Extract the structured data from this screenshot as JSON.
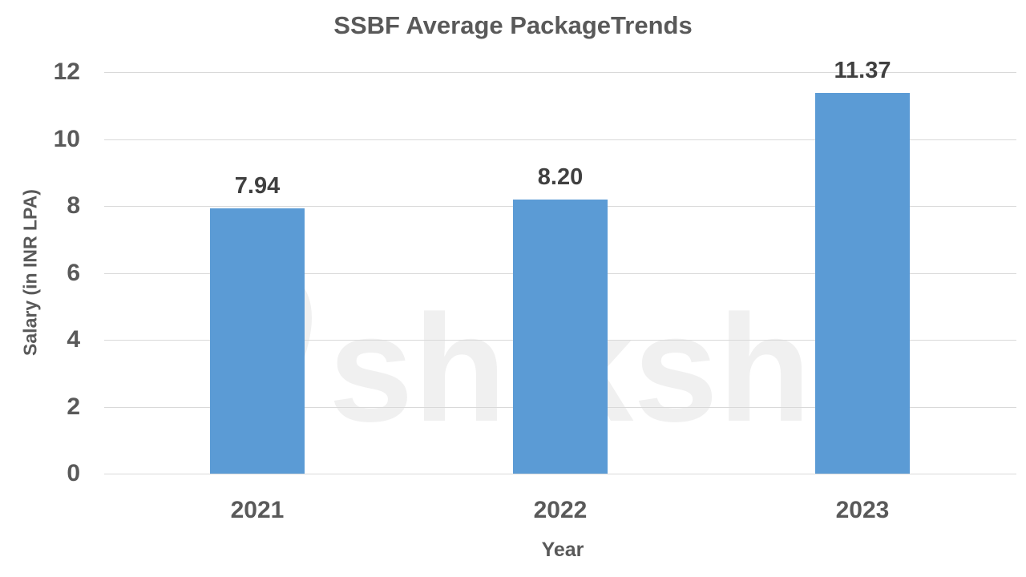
{
  "chart_data": {
    "type": "bar",
    "title": "SSBF Average PackageTrends",
    "xlabel": "Year",
    "ylabel": "Salary (in INR LPA)",
    "categories": [
      "2021",
      "2022",
      "2023"
    ],
    "values": [
      7.94,
      8.2,
      11.37
    ],
    "value_labels": [
      "7.94",
      "8.20",
      "11.37"
    ],
    "ylim": [
      0,
      12
    ],
    "yticks": [
      "0",
      "2",
      "4",
      "6",
      "8",
      "10",
      "12"
    ],
    "grid": true,
    "legend": null,
    "bar_color": "#5b9bd5"
  },
  "watermark": {
    "text": "shiksha"
  }
}
